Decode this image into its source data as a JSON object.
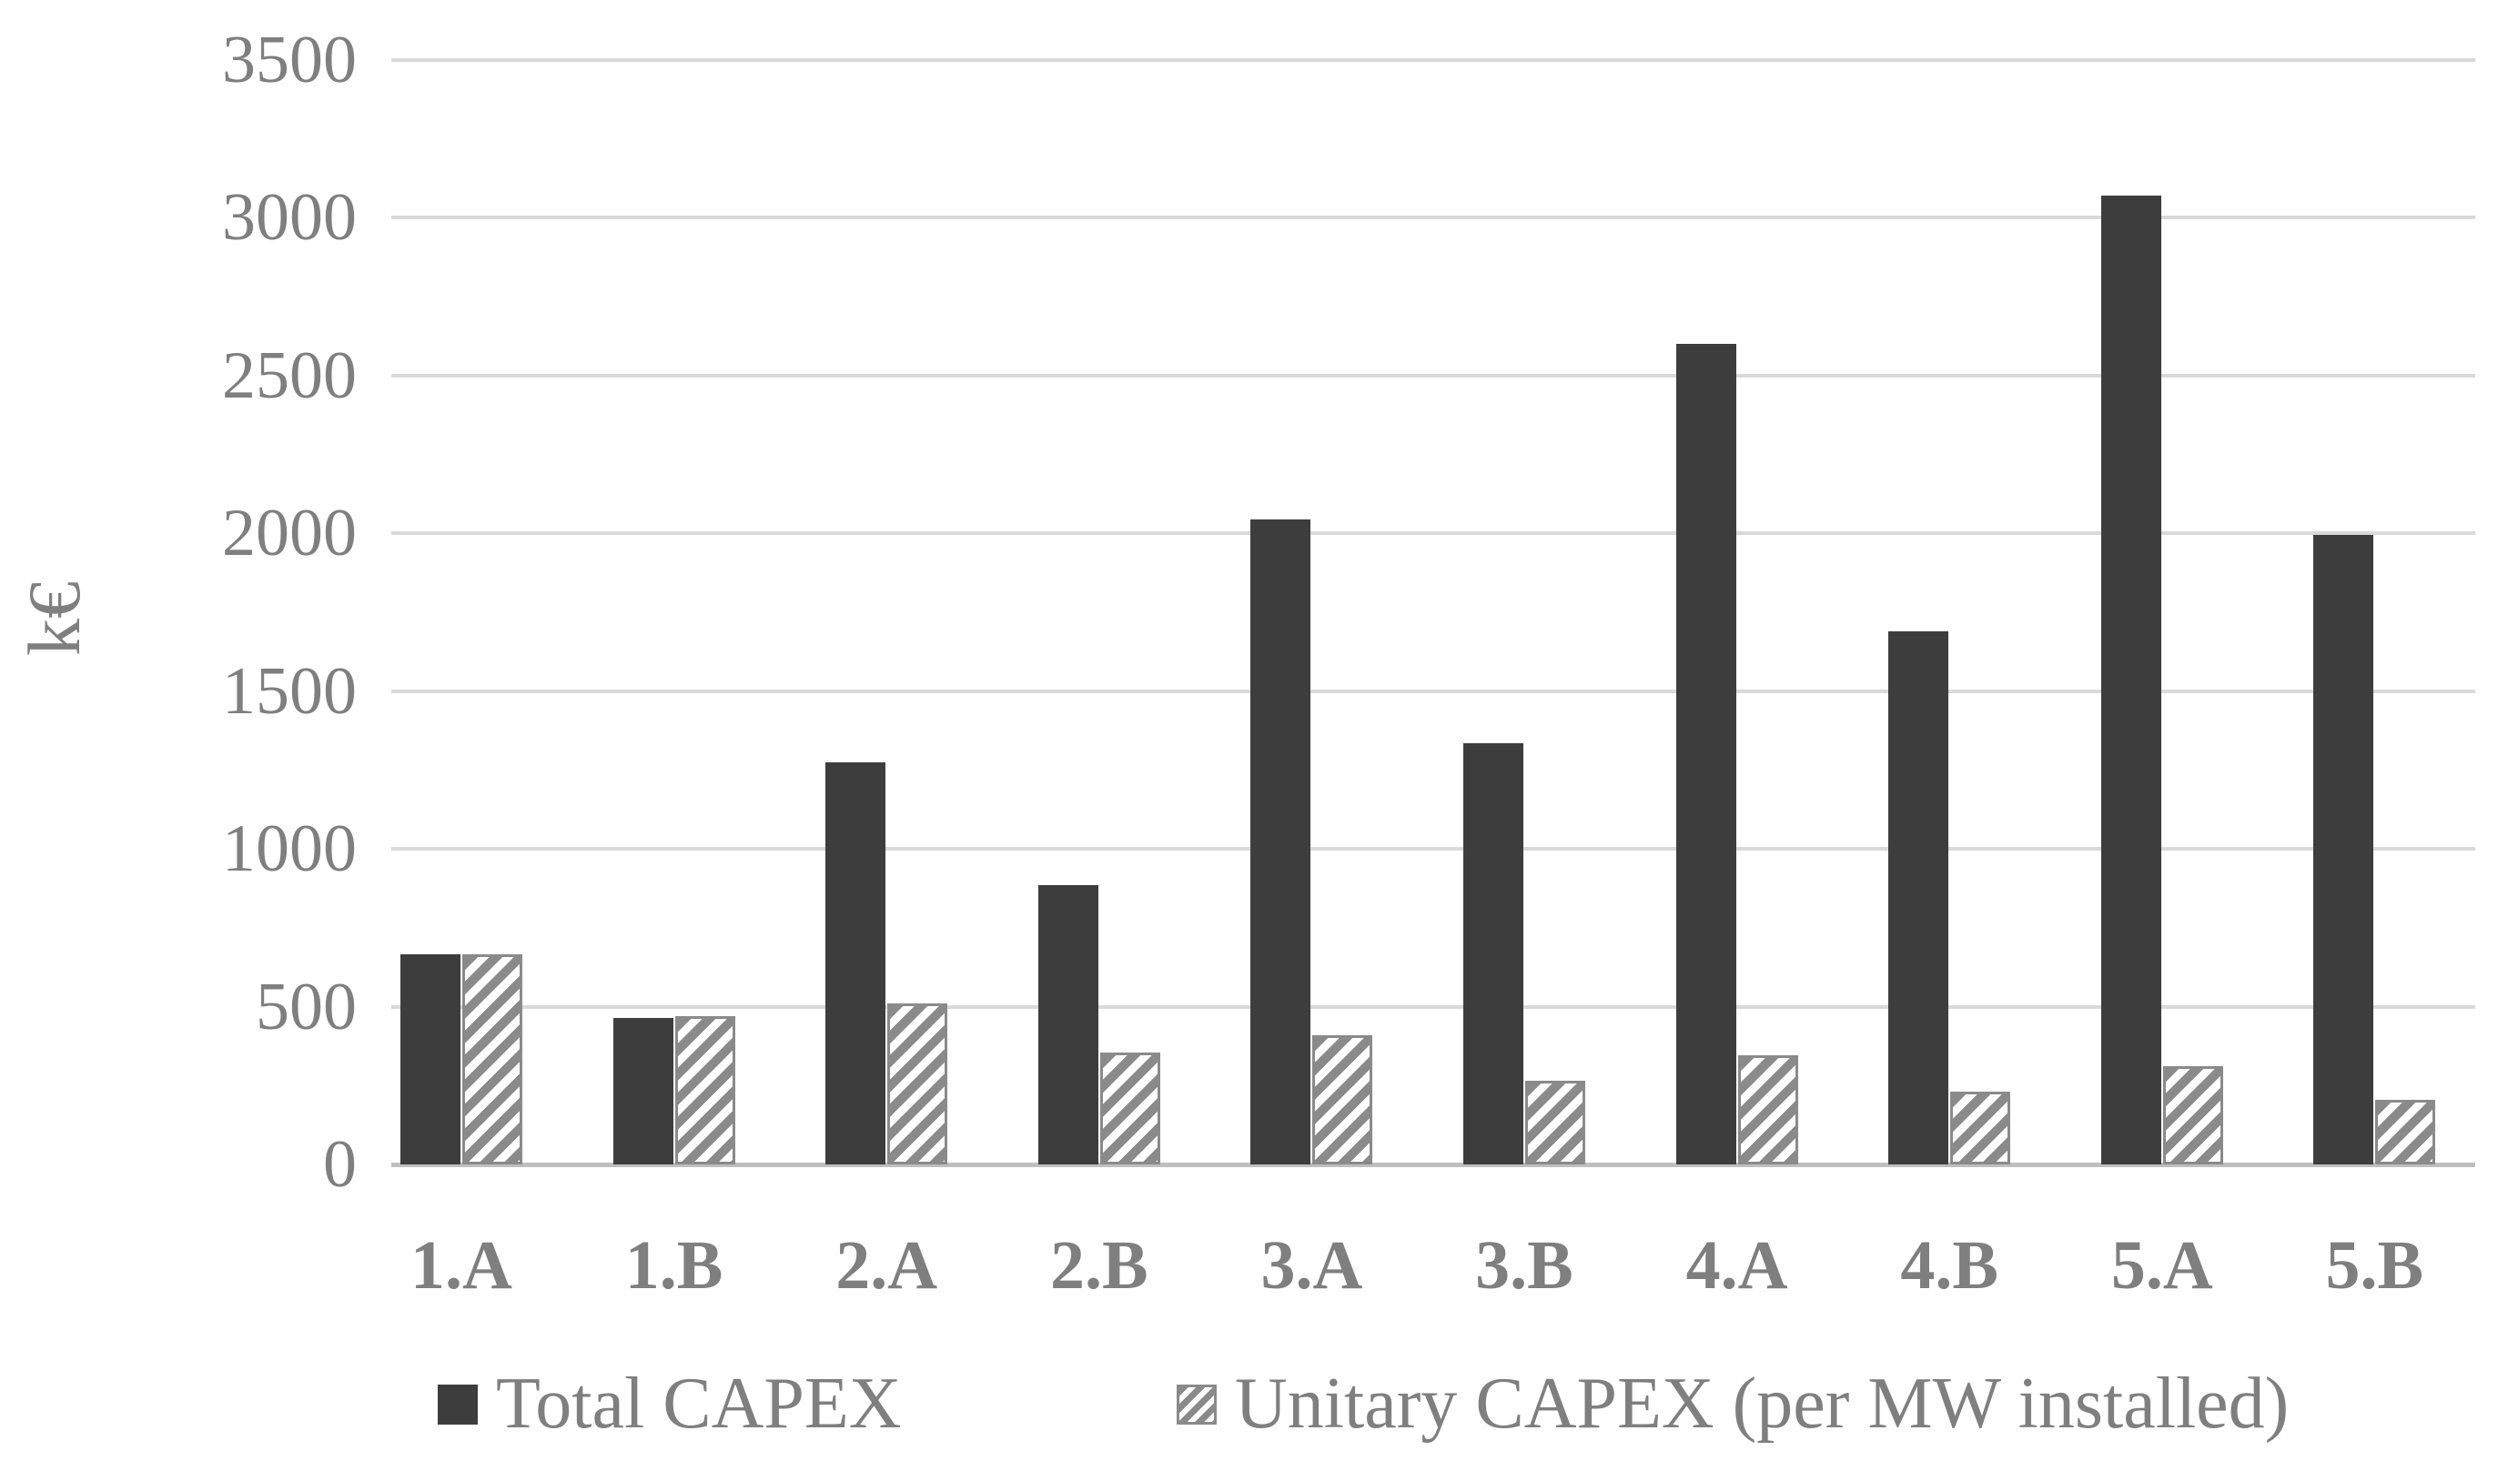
{
  "chart_data": {
    "type": "bar",
    "title": "",
    "xlabel": "",
    "ylabel": "k€",
    "categories": [
      "1.A",
      "1.B",
      "2.A",
      "2.B",
      "3.A",
      "3.B",
      "4.A",
      "4.B",
      "5.A",
      "5.B"
    ],
    "series": [
      {
        "name": "Total CAPEX",
        "style": "solid",
        "color": "#3d3d3d",
        "values": [
          665,
          465,
          1275,
          885,
          2045,
          1335,
          2600,
          1690,
          3070,
          1995
        ]
      },
      {
        "name": "Unitary CAPEX (per MW installed)",
        "style": "diagonal-hatch",
        "color": "#8a8a8a",
        "values": [
          665,
          470,
          510,
          355,
          410,
          265,
          345,
          230,
          310,
          205
        ]
      }
    ],
    "ylim": [
      0,
      3500
    ],
    "yticks": [
      0,
      500,
      1000,
      1500,
      2000,
      2500,
      3000,
      3500
    ],
    "grid": true,
    "gridline_color": "#d9d9d9",
    "legend_position": "bottom"
  },
  "colors": {
    "total_bar": "#3d3d3d",
    "unitary_hatch": "#8a8a8a",
    "axis_text": "#7f7f7f",
    "gridline": "#d9d9d9"
  }
}
